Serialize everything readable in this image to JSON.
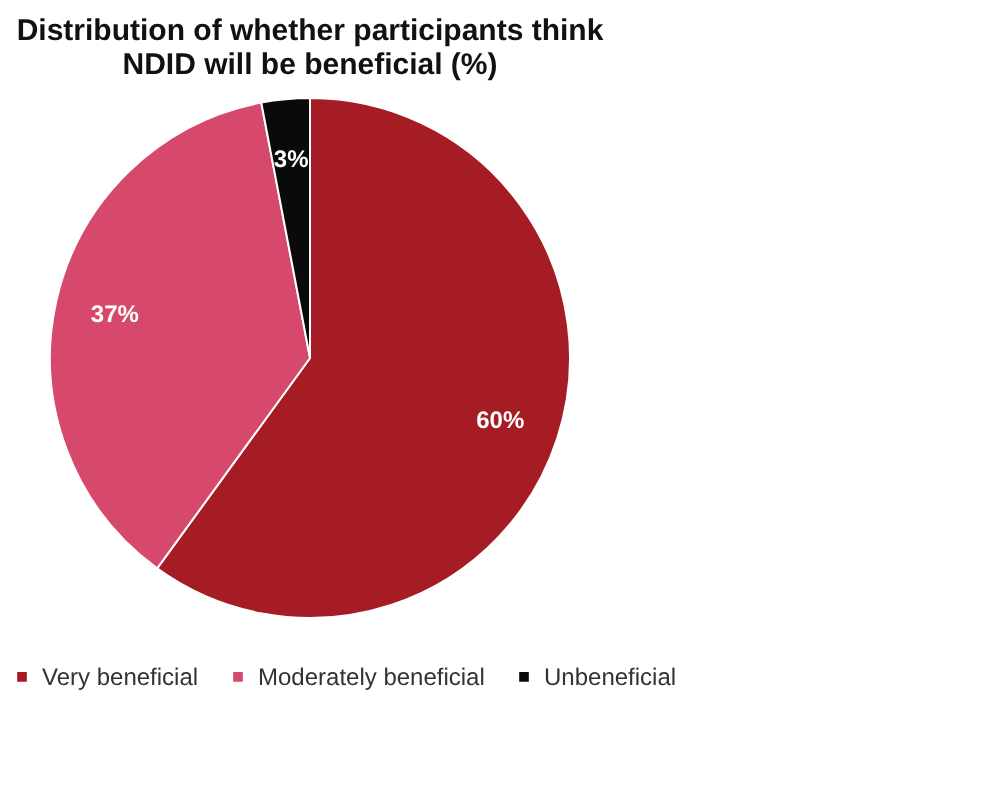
{
  "chart_data": {
    "type": "pie",
    "title": "Distribution of whether participants think NDID will be beneficial (%)",
    "categories": [
      "Very beneficial",
      "Moderately beneficial",
      "Unbeneficial"
    ],
    "values": [
      60,
      37,
      3
    ],
    "colors": [
      "#a51c25",
      "#d6496c",
      "#0a0a0a"
    ],
    "value_labels": [
      "60%",
      "37%",
      "3%"
    ],
    "legend": "bottom"
  }
}
